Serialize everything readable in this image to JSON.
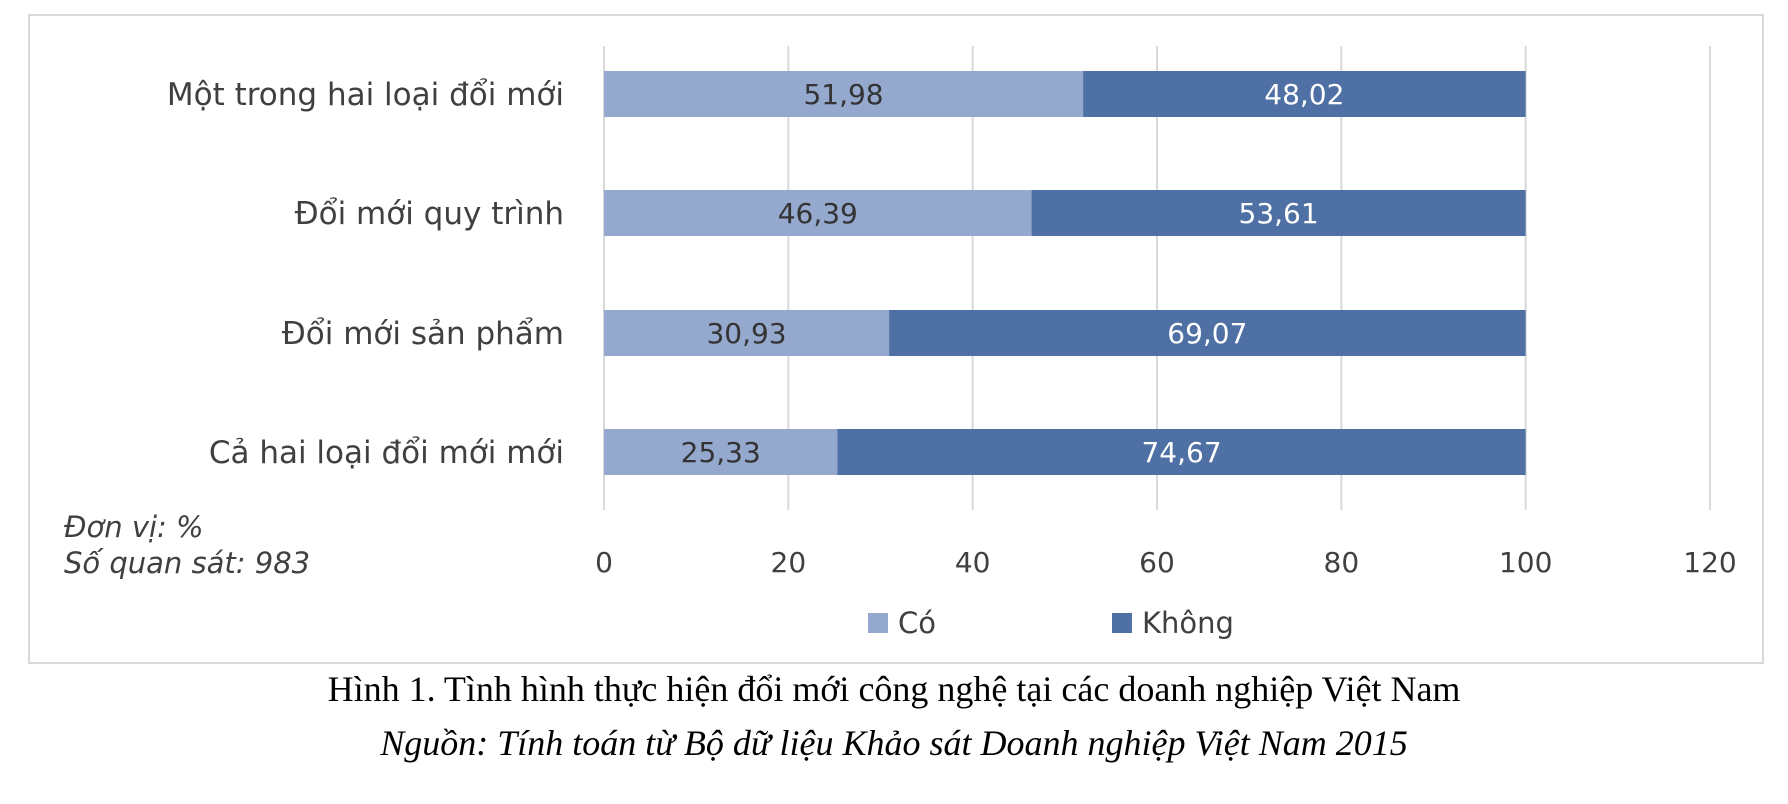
{
  "chart_data": {
    "type": "bar",
    "orientation": "horizontal",
    "stacked": true,
    "categories": [
      "Một trong hai loại đổi mới",
      "Đổi mới quy trình",
      "Đổi mới sản phẩm",
      "Cả hai loại đổi mới mới"
    ],
    "series": [
      {
        "name": "Có",
        "values": [
          51.98,
          46.39,
          30.93,
          25.33
        ],
        "labels": [
          "51,98",
          "46,39",
          "30,93",
          "25,33"
        ],
        "color": "#95a9cf"
      },
      {
        "name": "Không",
        "values": [
          48.02,
          53.61,
          69.07,
          74.67
        ],
        "labels": [
          "48,02",
          "53,61",
          "69,07",
          "74,67"
        ],
        "color": "#4f70a4"
      }
    ],
    "xlim": [
      0,
      120
    ],
    "xticks": [
      0,
      20,
      40,
      60,
      80,
      100,
      120
    ],
    "xtick_labels": [
      "0",
      "20",
      "40",
      "60",
      "80",
      "100",
      "120"
    ],
    "grid": "vertical",
    "legend": "bottom"
  },
  "notes": {
    "unit": "Đơn vị: %",
    "observations": "Số quan sát: 983"
  },
  "caption": {
    "title": "Hình 1. Tình hình thực hiện đổi mới công nghệ tại các doanh nghiệp Việt Nam",
    "source": "Nguồn: Tính toán từ Bộ dữ liệu Khảo sát Doanh nghiệp Việt Nam 2015"
  },
  "colors": {
    "grid": "#d9d9d9",
    "label_text": "#404040",
    "frame": "#d9d9d9"
  }
}
